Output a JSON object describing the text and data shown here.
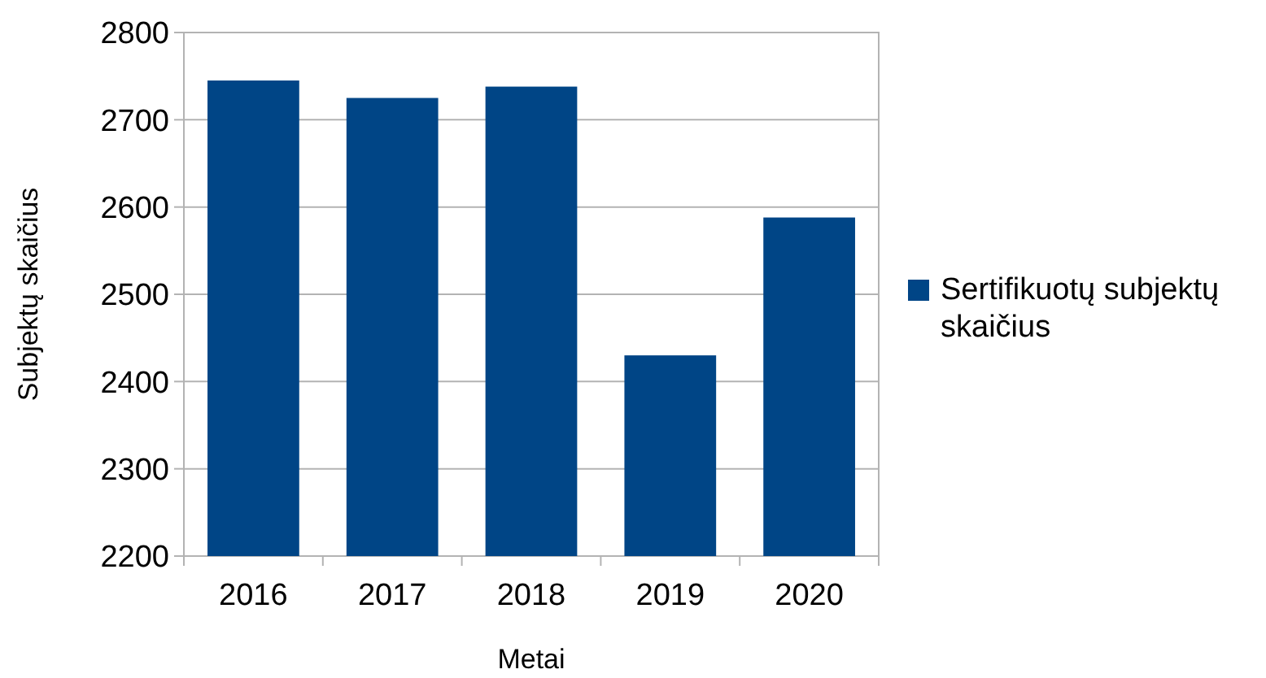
{
  "chart_data": {
    "type": "bar",
    "xlabel": "Metai",
    "ylabel": "Subjektų skaičius",
    "categories": [
      "2016",
      "2017",
      "2018",
      "2019",
      "2020"
    ],
    "series": [
      {
        "name": "Sertifikuotų subjektų skaičius",
        "color": "#004586",
        "values": [
          2745,
          2725,
          2738,
          2430,
          2588
        ]
      }
    ],
    "ylim": [
      2200,
      2800
    ],
    "yticks": [
      2200,
      2300,
      2400,
      2500,
      2600,
      2700,
      2800
    ],
    "grid": "y",
    "legend": "right"
  }
}
